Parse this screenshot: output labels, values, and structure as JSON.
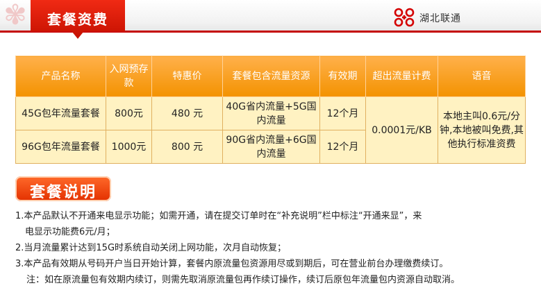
{
  "header": {
    "title": "套餐资费",
    "brand": "湖北联通"
  },
  "table": {
    "columns": [
      "产品名称",
      "入网预存款",
      "特惠价",
      "套餐包含流量资源",
      "有效期",
      "超出流量计费",
      "语音"
    ],
    "rows": [
      {
        "name": "45G包年流量套餐",
        "deposit": "800元",
        "price": "480 元",
        "traffic": "40G省内流量+5G国内流量",
        "validity": "12个月"
      },
      {
        "name": "96G包年流量套餐",
        "deposit": "1000元",
        "price": "800 元",
        "traffic": "90G省内流量+6G国内流量",
        "validity": "12个月"
      }
    ],
    "overage": "0.0001元/KB",
    "voice": "本地主叫0.6元/分钟,本地被叫免费,其他执行标准资费"
  },
  "section": {
    "title": "套餐说明"
  },
  "notes": {
    "n1a": "1.本产品默认不开通来电显示功能；如需开通，请在提交订单时在“补充说明”栏中标注“开通来显”，来",
    "n1b": "电显示功能费6元/月；",
    "n2": "2.当月流量累计达到15G时系统自动关闭上网功能，次月自动恢复；",
    "n3": "3.本产品有效期从号码开户当日开始计算，套餐内原流量包资源用尽或到期后，可在营业前台办理缴费续订。",
    "n4": "注：如在原流量包有效期内续订，则需先取消原流量包再作续订操作，续订后原包年流量包内资源自动取消。"
  }
}
